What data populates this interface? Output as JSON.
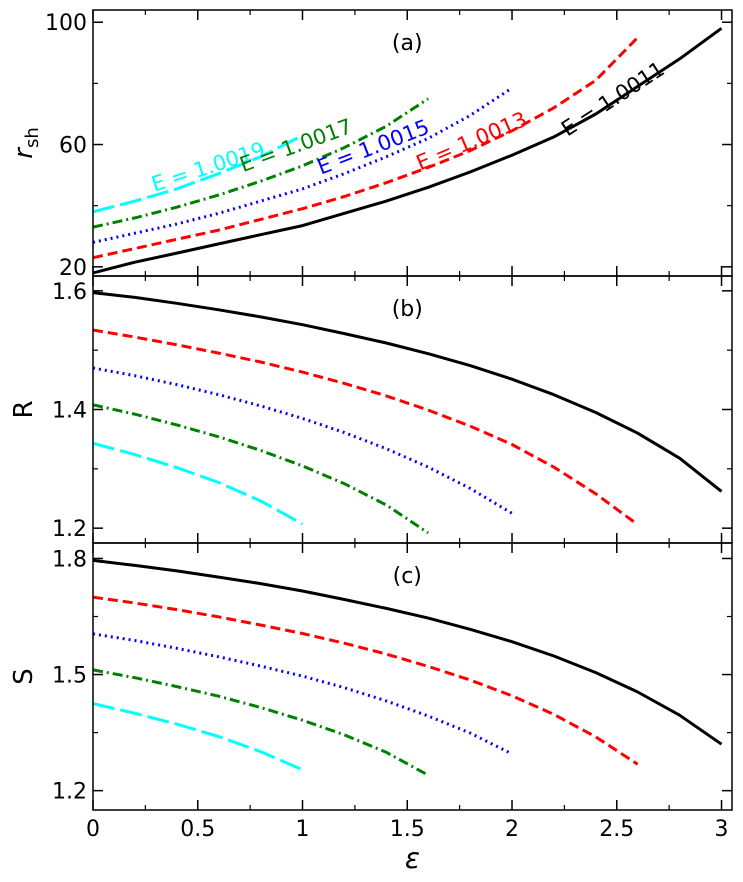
{
  "chart_data": [
    {
      "type": "line",
      "panel_label": "(a)",
      "ylabel_main": "r",
      "ylabel_sub": "sh",
      "xlim": [
        0,
        3.05
      ],
      "ylim": [
        17,
        104
      ],
      "yticks": [
        20,
        60,
        100
      ],
      "ytick_labels": [
        "20",
        "60",
        "100"
      ],
      "minor_yticks": [
        40,
        80
      ],
      "series": [
        {
          "name": "E = 1.0011",
          "color": "#000000",
          "dash": "solid",
          "x": [
            0,
            0.2,
            0.4,
            0.6,
            0.8,
            1.0,
            1.2,
            1.4,
            1.6,
            1.8,
            2.0,
            2.2,
            2.4,
            2.6,
            2.8,
            3.0
          ],
          "y": [
            18,
            21.5,
            24.5,
            27.5,
            30.5,
            33.5,
            37.5,
            41.5,
            46,
            51,
            56.5,
            62.5,
            70,
            79,
            88,
            98
          ]
        },
        {
          "name": "E = 1.0013",
          "color": "#ff0000",
          "dash": "dashed",
          "x": [
            0,
            0.2,
            0.4,
            0.6,
            0.8,
            1.0,
            1.2,
            1.4,
            1.6,
            1.8,
            2.0,
            2.2,
            2.4,
            2.6
          ],
          "y": [
            23,
            26,
            29,
            32,
            35.5,
            39,
            43,
            47.5,
            52.5,
            58,
            64.5,
            72,
            81,
            95
          ]
        },
        {
          "name": "E = 1.0015",
          "color": "#0000ff",
          "dash": "dotted",
          "x": [
            0,
            0.2,
            0.4,
            0.6,
            0.8,
            1.0,
            1.2,
            1.4,
            1.6,
            1.8,
            2.0
          ],
          "y": [
            28,
            31,
            34,
            37.5,
            41.5,
            45.5,
            50.5,
            56,
            62,
            69.5,
            78.5
          ]
        },
        {
          "name": "E = 1.0017",
          "color": "#008000",
          "dash": "dashdot",
          "x": [
            0,
            0.2,
            0.4,
            0.6,
            0.8,
            1.0,
            1.2,
            1.4,
            1.6
          ],
          "y": [
            33,
            36,
            39.5,
            43.5,
            48,
            53,
            59,
            66,
            75
          ]
        },
        {
          "name": "E = 1.0019",
          "color": "#00ffff",
          "dash": "longdash",
          "x": [
            0,
            0.2,
            0.4,
            0.6,
            0.8,
            1.0
          ],
          "y": [
            38,
            41.5,
            45.5,
            50.5,
            56,
            63
          ]
        }
      ],
      "annotations": [
        {
          "text": "E = 1.0019",
          "color": "#00ffff",
          "x": 0.56,
          "y": 50.5,
          "rotate": -18
        },
        {
          "text": "E = 1.0017",
          "color": "#008000",
          "x": 0.98,
          "y": 57.5,
          "rotate": -20
        },
        {
          "text": "E = 1.0015",
          "color": "#0000ff",
          "x": 1.35,
          "y": 57,
          "rotate": -21
        },
        {
          "text": "E = 1.0013",
          "color": "#ff0000",
          "x": 1.82,
          "y": 59,
          "rotate": -23
        },
        {
          "text": "E = 1.0011",
          "color": "#000000",
          "x": 2.5,
          "y": 73,
          "rotate": -33
        }
      ]
    },
    {
      "type": "line",
      "panel_label": "(b)",
      "ylabel": "R",
      "xlim": [
        0,
        3.05
      ],
      "ylim": [
        1.175,
        1.625
      ],
      "yticks": [
        1.2,
        1.4,
        1.6
      ],
      "ytick_labels": [
        "1.2",
        "1.4",
        "1.6"
      ],
      "minor_yticks": [
        1.3,
        1.5
      ],
      "series": [
        {
          "name": "E = 1.0011",
          "color": "#000000",
          "dash": "solid",
          "x": [
            0,
            0.2,
            0.4,
            0.6,
            0.8,
            1.0,
            1.2,
            1.4,
            1.6,
            1.8,
            2.0,
            2.2,
            2.4,
            2.6,
            2.8,
            3.0
          ],
          "y": [
            1.597,
            1.589,
            1.579,
            1.568,
            1.556,
            1.543,
            1.528,
            1.512,
            1.494,
            1.474,
            1.451,
            1.425,
            1.395,
            1.36,
            1.318,
            1.262
          ]
        },
        {
          "name": "E = 1.0013",
          "color": "#ff0000",
          "dash": "dashed",
          "x": [
            0,
            0.2,
            0.4,
            0.6,
            0.8,
            1.0,
            1.2,
            1.4,
            1.6,
            1.8,
            2.0,
            2.2,
            2.4,
            2.6
          ],
          "y": [
            1.534,
            1.522,
            1.509,
            1.495,
            1.48,
            1.463,
            1.444,
            1.423,
            1.399,
            1.372,
            1.341,
            1.303,
            1.258,
            1.206
          ]
        },
        {
          "name": "E = 1.0015",
          "color": "#0000ff",
          "dash": "dotted",
          "x": [
            0,
            0.2,
            0.4,
            0.6,
            0.8,
            1.0,
            1.2,
            1.4,
            1.6,
            1.8,
            2.0
          ],
          "y": [
            1.47,
            1.457,
            1.442,
            1.425,
            1.406,
            1.385,
            1.361,
            1.334,
            1.303,
            1.267,
            1.225
          ]
        },
        {
          "name": "E = 1.0017",
          "color": "#008000",
          "dash": "dashdot",
          "x": [
            0,
            0.2,
            0.4,
            0.6,
            0.8,
            1.0,
            1.2,
            1.4,
            1.6
          ],
          "y": [
            1.408,
            1.392,
            1.374,
            1.354,
            1.331,
            1.305,
            1.275,
            1.239,
            1.192
          ]
        },
        {
          "name": "E = 1.0019",
          "color": "#00ffff",
          "dash": "longdash",
          "x": [
            0,
            0.2,
            0.4,
            0.6,
            0.8,
            1.0
          ],
          "y": [
            1.343,
            1.324,
            1.302,
            1.277,
            1.246,
            1.207
          ]
        }
      ]
    },
    {
      "type": "line",
      "panel_label": "(c)",
      "ylabel": "S",
      "xlabel": "ε",
      "xlim": [
        0,
        3.05
      ],
      "xticks": [
        0,
        0.5,
        1,
        1.5,
        2,
        2.5,
        3
      ],
      "xtick_labels": [
        "0",
        "0.5",
        "1",
        "1.5",
        "2",
        "2.5",
        "3"
      ],
      "ylim": [
        1.15,
        1.84
      ],
      "yticks": [
        1.2,
        1.5,
        1.8
      ],
      "ytick_labels": [
        "1.2",
        "1.5",
        "1.8"
      ],
      "minor_yticks": [
        1.35,
        1.65
      ],
      "series": [
        {
          "name": "E = 1.0011",
          "color": "#000000",
          "dash": "solid",
          "x": [
            0,
            0.2,
            0.4,
            0.6,
            0.8,
            1.0,
            1.2,
            1.4,
            1.6,
            1.8,
            2.0,
            2.2,
            2.4,
            2.6,
            2.8,
            3.0
          ],
          "y": [
            1.795,
            1.782,
            1.768,
            1.752,
            1.735,
            1.716,
            1.694,
            1.671,
            1.646,
            1.617,
            1.585,
            1.548,
            1.505,
            1.455,
            1.395,
            1.32
          ]
        },
        {
          "name": "E = 1.0013",
          "color": "#ff0000",
          "dash": "dashed",
          "x": [
            0,
            0.2,
            0.4,
            0.6,
            0.8,
            1.0,
            1.2,
            1.4,
            1.6,
            1.8,
            2.0,
            2.2,
            2.4,
            2.6
          ],
          "y": [
            1.7,
            1.685,
            1.668,
            1.649,
            1.628,
            1.606,
            1.581,
            1.553,
            1.521,
            1.486,
            1.445,
            1.397,
            1.339,
            1.268
          ]
        },
        {
          "name": "E = 1.0015",
          "color": "#0000ff",
          "dash": "dotted",
          "x": [
            0,
            0.2,
            0.4,
            0.6,
            0.8,
            1.0,
            1.2,
            1.4,
            1.6,
            1.8,
            2.0
          ],
          "y": [
            1.605,
            1.588,
            1.568,
            1.546,
            1.522,
            1.496,
            1.466,
            1.432,
            1.393,
            1.349,
            1.295
          ]
        },
        {
          "name": "E = 1.0017",
          "color": "#008000",
          "dash": "dashdot",
          "x": [
            0,
            0.2,
            0.4,
            0.6,
            0.8,
            1.0,
            1.2,
            1.4,
            1.6
          ],
          "y": [
            1.512,
            1.492,
            1.469,
            1.444,
            1.415,
            1.382,
            1.344,
            1.299,
            1.24
          ]
        },
        {
          "name": "E = 1.0019",
          "color": "#00ffff",
          "dash": "longdash",
          "x": [
            0,
            0.2,
            0.4,
            0.6,
            0.8,
            1.0
          ],
          "y": [
            1.425,
            1.4,
            1.372,
            1.34,
            1.301,
            1.254
          ]
        }
      ]
    }
  ]
}
